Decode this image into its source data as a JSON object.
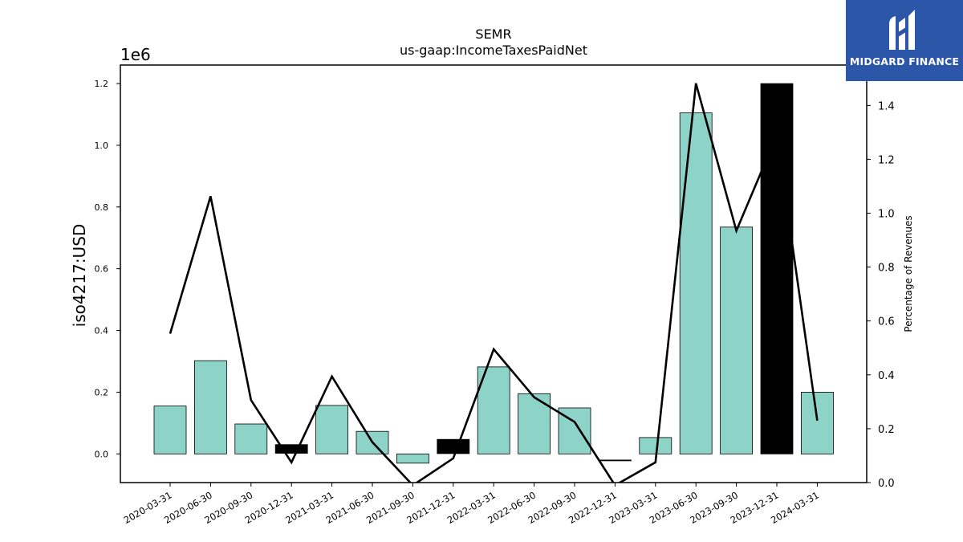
{
  "chart_data": {
    "type": "bar",
    "title": "SEMR",
    "subtitle": "us-gaap:IncomeTaxesPaidNet",
    "ylabel": "iso4217:USD",
    "y_offset_label": "1e6",
    "y2label": "Percentage of Revenues",
    "categories": [
      "2020-03-31",
      "2020-06-30",
      "2020-09-30",
      "2020-12-31",
      "2021-03-31",
      "2021-06-30",
      "2021-09-30",
      "2021-12-31",
      "2022-03-31",
      "2022-06-30",
      "2022-09-30",
      "2022-12-31",
      "2023-03-31",
      "2023-06-30",
      "2023-09-30",
      "2023-12-31",
      "2024-03-31"
    ],
    "series": [
      {
        "axis": "left",
        "kind": "bar",
        "values": [
          0.155,
          0.302,
          0.097,
          0.03,
          0.157,
          0.073,
          -0.03,
          0.047,
          0.282,
          0.195,
          0.149,
          -0.02,
          0.053,
          1.105,
          0.735,
          1.2,
          0.2
        ],
        "highlight": [
          false,
          false,
          false,
          true,
          false,
          false,
          false,
          true,
          false,
          false,
          false,
          true,
          false,
          false,
          false,
          true,
          false
        ],
        "highlight_bottom": [
          null,
          null,
          null,
          0.002,
          null,
          null,
          null,
          0.001,
          null,
          null,
          null,
          -0.022,
          null,
          null,
          null,
          null,
          null
        ]
      },
      {
        "axis": "right",
        "kind": "line",
        "values": [
          0.553,
          1.063,
          0.306,
          0.075,
          0.394,
          0.15,
          -0.01,
          0.09,
          0.495,
          0.317,
          0.225,
          -0.01,
          0.075,
          1.482,
          0.935,
          1.29,
          0.23
        ]
      }
    ],
    "ylim": [
      -0.093,
      1.26
    ],
    "yticks": [
      0.0,
      0.2,
      0.4,
      0.6,
      0.8,
      1.0,
      1.2
    ],
    "y2lim": [
      0.0,
      1.55
    ],
    "y2ticks": [
      0.0,
      0.2,
      0.4,
      0.6,
      0.8,
      1.0,
      1.2,
      1.4
    ],
    "colors": {
      "bar": "#8dd3c7",
      "highlight": "#000000",
      "line": "#000000"
    }
  },
  "logo": {
    "text": "MIDGARD FINANCE",
    "background": "#2c56a8"
  }
}
